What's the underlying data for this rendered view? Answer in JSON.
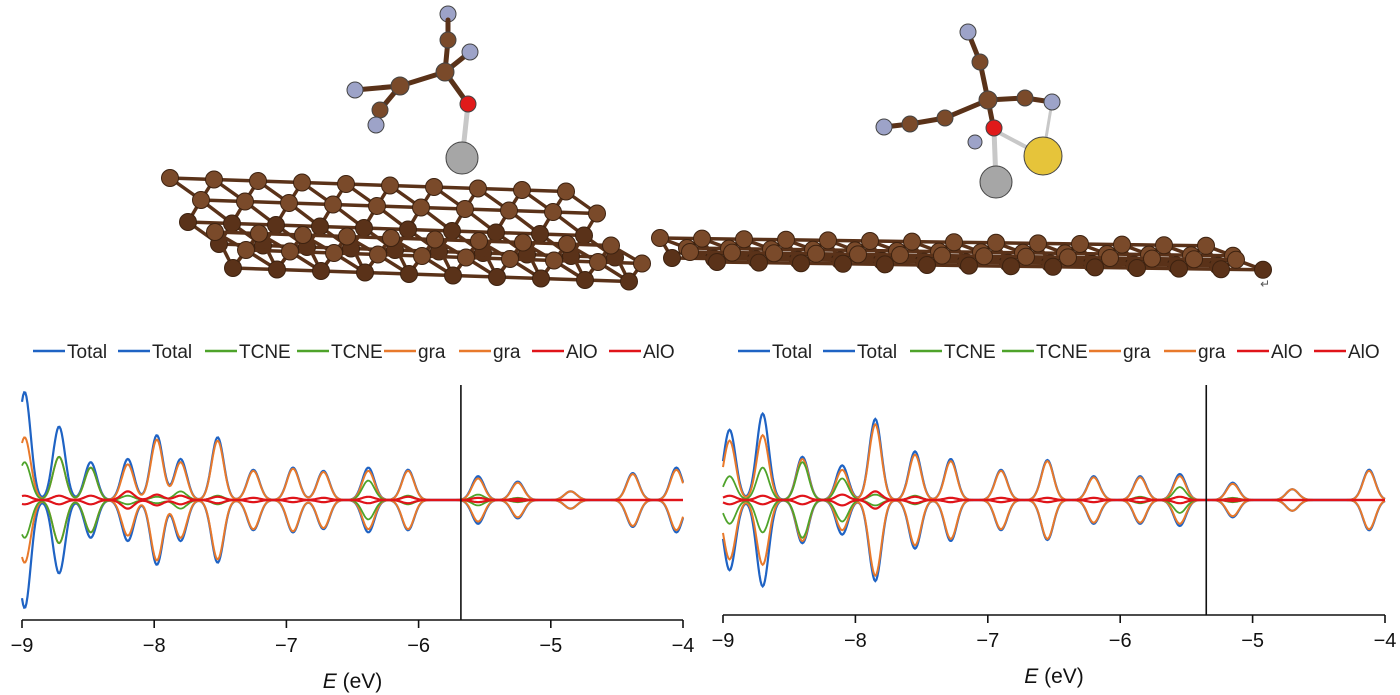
{
  "colors": {
    "total": "#1f63c4",
    "tcne": "#4ea32a",
    "gra": "#e8792b",
    "alo": "#e0141a",
    "carbon": "#7a4a2a",
    "carbon_dark": "#5a3219",
    "oxygen": "#e01a1a",
    "hydrogen_like": "#9da3c8",
    "aluminum": "#a6a6a6",
    "sulfur": "#e6c43a",
    "axis": "#111111"
  },
  "molecules": [
    {
      "name": "left-structure"
    },
    {
      "name": "right-structure"
    }
  ],
  "corner_mark": "↵",
  "chart_data": [
    {
      "type": "line",
      "legend": [
        "Total",
        "Total",
        "TCNE",
        "TCNE",
        "gra",
        "gra",
        "AlO",
        "AlO"
      ],
      "legend_placement": "top",
      "xlim": [
        -9,
        -4
      ],
      "x_ticks": [
        -9,
        -8,
        -7,
        -6,
        -5,
        -4
      ],
      "x_tick_labels": [
        "−9",
        "−8",
        "−7",
        "−6",
        "−5",
        "−4"
      ],
      "xlabel_italic": "E",
      "xlabel_rest": " (eV)",
      "fermi_level": -5.68,
      "grid": false,
      "peaks": [
        {
          "x": -8.98,
          "total": 1.0,
          "tcne": 0.35,
          "gra": 0.58,
          "alo": 0.04
        },
        {
          "x": -8.72,
          "total": 0.68,
          "tcne": 0.4,
          "gra": 0.4,
          "alo": 0.04
        },
        {
          "x": -8.48,
          "total": 0.35,
          "tcne": 0.3,
          "gra": 0.3,
          "alo": 0.04
        },
        {
          "x": -8.2,
          "total": 0.38,
          "tcne": 0.04,
          "gra": 0.33,
          "alo": 0.08
        },
        {
          "x": -7.98,
          "total": 0.6,
          "tcne": 0.03,
          "gra": 0.56,
          "alo": 0.05
        },
        {
          "x": -7.8,
          "total": 0.38,
          "tcne": 0.08,
          "gra": 0.35,
          "alo": 0.04
        },
        {
          "x": -7.52,
          "total": 0.58,
          "tcne": 0.04,
          "gra": 0.55,
          "alo": 0.03
        },
        {
          "x": -7.25,
          "total": 0.28,
          "tcne": 0.02,
          "gra": 0.27,
          "alo": 0.02
        },
        {
          "x": -6.95,
          "total": 0.3,
          "tcne": 0.02,
          "gra": 0.29,
          "alo": 0.02
        },
        {
          "x": -6.72,
          "total": 0.27,
          "tcne": 0.02,
          "gra": 0.26,
          "alo": 0.02
        },
        {
          "x": -6.38,
          "total": 0.3,
          "tcne": 0.18,
          "gra": 0.27,
          "alo": 0.03
        },
        {
          "x": -6.08,
          "total": 0.28,
          "tcne": 0.04,
          "gra": 0.27,
          "alo": 0.03
        },
        {
          "x": -5.55,
          "total": 0.22,
          "tcne": 0.05,
          "gra": 0.2,
          "alo": 0.02
        },
        {
          "x": -5.25,
          "total": 0.17,
          "tcne": 0.02,
          "gra": 0.16,
          "alo": 0.01
        },
        {
          "x": -4.85,
          "total": 0.08,
          "tcne": 0.0,
          "gra": 0.08,
          "alo": 0.0
        },
        {
          "x": -4.38,
          "total": 0.25,
          "tcne": 0.0,
          "gra": 0.24,
          "alo": 0.0
        },
        {
          "x": -4.05,
          "total": 0.3,
          "tcne": 0.0,
          "gra": 0.28,
          "alo": 0.0
        }
      ]
    },
    {
      "type": "line",
      "legend": [
        "Total",
        "Total",
        "TCNE",
        "TCNE",
        "gra",
        "gra",
        "AlO",
        "AlO"
      ],
      "legend_placement": "top",
      "xlim": [
        -9,
        -4
      ],
      "x_ticks": [
        -9,
        -8,
        -7,
        -6,
        -5,
        -4
      ],
      "x_tick_labels": [
        "−9",
        "−8",
        "−7",
        "−6",
        "−5",
        "−4"
      ],
      "xlabel_italic": "E",
      "xlabel_rest": " (eV)",
      "fermi_level": -5.35,
      "grid": false,
      "peaks": [
        {
          "x": -8.95,
          "total": 0.65,
          "tcne": 0.22,
          "gra": 0.55,
          "alo": 0.04
        },
        {
          "x": -8.7,
          "total": 0.8,
          "tcne": 0.3,
          "gra": 0.6,
          "alo": 0.04
        },
        {
          "x": -8.4,
          "total": 0.4,
          "tcne": 0.35,
          "gra": 0.38,
          "alo": 0.04
        },
        {
          "x": -8.1,
          "total": 0.32,
          "tcne": 0.2,
          "gra": 0.28,
          "alo": 0.05
        },
        {
          "x": -7.85,
          "total": 0.75,
          "tcne": 0.05,
          "gra": 0.7,
          "alo": 0.08
        },
        {
          "x": -7.55,
          "total": 0.45,
          "tcne": 0.04,
          "gra": 0.42,
          "alo": 0.03
        },
        {
          "x": -7.28,
          "total": 0.38,
          "tcne": 0.02,
          "gra": 0.36,
          "alo": 0.02
        },
        {
          "x": -6.9,
          "total": 0.28,
          "tcne": 0.02,
          "gra": 0.27,
          "alo": 0.02
        },
        {
          "x": -6.55,
          "total": 0.37,
          "tcne": 0.02,
          "gra": 0.36,
          "alo": 0.02
        },
        {
          "x": -6.2,
          "total": 0.22,
          "tcne": 0.02,
          "gra": 0.21,
          "alo": 0.02
        },
        {
          "x": -5.85,
          "total": 0.22,
          "tcne": 0.03,
          "gra": 0.21,
          "alo": 0.02
        },
        {
          "x": -5.55,
          "total": 0.24,
          "tcne": 0.12,
          "gra": 0.22,
          "alo": 0.03
        },
        {
          "x": -5.15,
          "total": 0.16,
          "tcne": 0.02,
          "gra": 0.15,
          "alo": 0.01
        },
        {
          "x": -4.7,
          "total": 0.1,
          "tcne": 0.0,
          "gra": 0.1,
          "alo": 0.0
        },
        {
          "x": -4.12,
          "total": 0.28,
          "tcne": 0.0,
          "gra": 0.27,
          "alo": 0.0
        }
      ]
    }
  ]
}
